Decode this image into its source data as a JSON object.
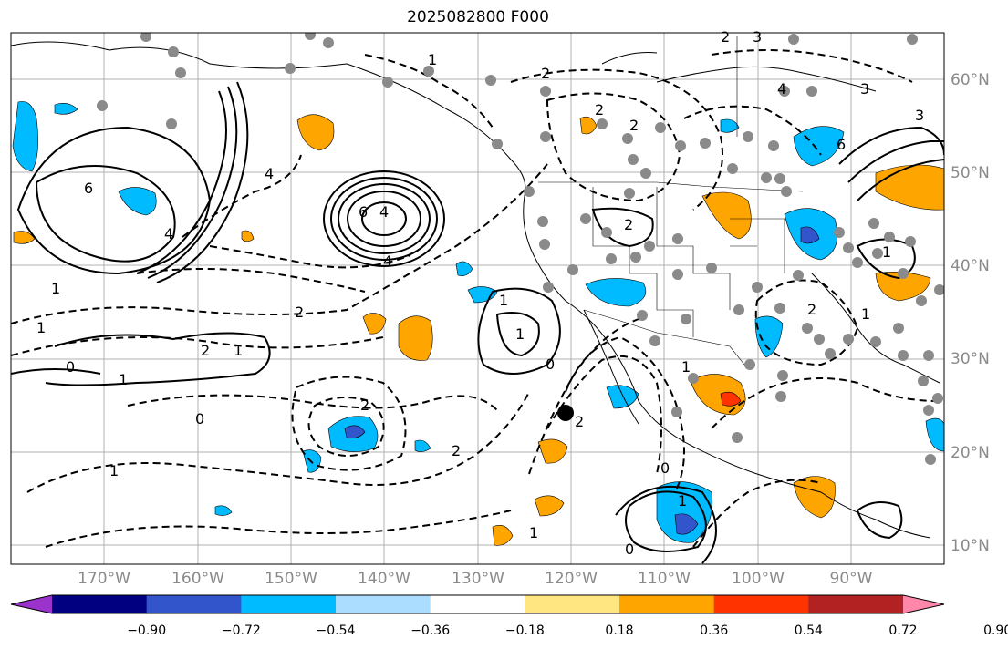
{
  "title": "2025082800 F000",
  "lat_labels": [
    "60°N",
    "50°N",
    "40°N",
    "30°N",
    "20°N",
    "10°N"
  ],
  "lon_labels": [
    "170°W",
    "160°W",
    "150°W",
    "140°W",
    "130°W",
    "120°W",
    "110°W",
    "100°W",
    "90°W"
  ],
  "contour_labels": [
    "1",
    "2",
    "4",
    "6",
    "4",
    "2",
    "1",
    "1",
    "2",
    "0",
    "1",
    "1",
    "1",
    "2",
    "0",
    "2",
    "1",
    "1",
    "0",
    "1",
    "2",
    "2",
    "0",
    "0",
    "1",
    "1",
    "2",
    "4",
    "3",
    "6",
    "3",
    "1",
    "2",
    "3",
    "2",
    "2",
    "4",
    "6",
    "1",
    "4"
  ],
  "colorbar": {
    "tick_labels": [
      "−0.90",
      "−0.72",
      "−0.54",
      "−0.36",
      "−0.18",
      "0.18",
      "0.36",
      "0.54",
      "0.72",
      "0.90"
    ],
    "colors": [
      "#9933cc",
      "#000080",
      "#3355cc",
      "#00bbff",
      "#aaddff",
      "#ffffff",
      "#ffe680",
      "#ffa500",
      "#ff3300",
      "#b22222",
      "#ff88aa"
    ]
  },
  "marker": {
    "name": "location-marker",
    "color": "#000000"
  }
}
